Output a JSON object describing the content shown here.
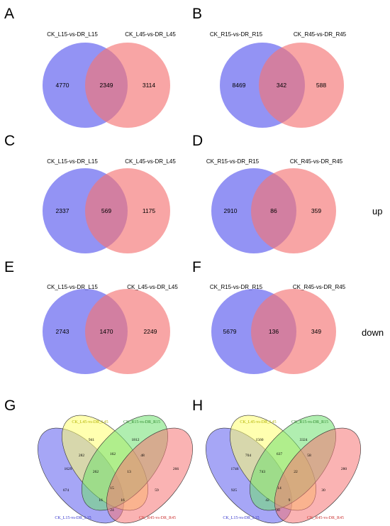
{
  "colors": {
    "set_a": "#7f7ff0",
    "set_b": "#f58a8a",
    "overlap": "#b0568c",
    "v4_blue": "#6a6af0",
    "v4_yellow": "#ffff80",
    "v4_green": "#7fe07f",
    "v4_red": "#f58a8a",
    "v4_label_blue": "#3333cc",
    "v4_label_yellow": "#b3b300",
    "v4_label_green": "#2e8b2e",
    "v4_label_red": "#cc3333"
  },
  "side_labels": {
    "up": "up",
    "down": "down"
  },
  "venn2": [
    {
      "letter": "A",
      "left_label": "CK_L15-vs-DR_L15",
      "right_label": "CK_L45-vs-DR_L45",
      "left_only": "4770",
      "both": "2349",
      "right_only": "3114"
    },
    {
      "letter": "B",
      "left_label": "CK_R15-vs-DR_R15",
      "right_label": "CK_R45-vs-DR_R45",
      "left_only": "8469",
      "both": "342",
      "right_only": "588"
    },
    {
      "letter": "C",
      "left_label": "CK_L15-vs-DR_L15",
      "right_label": "CK_L45-vs-DR_L45",
      "left_only": "2337",
      "both": "569",
      "right_only": "1175"
    },
    {
      "letter": "D",
      "left_label": "CK_R15-vs-DR_R15",
      "right_label": "CK_R45-vs-DR_R45",
      "left_only": "2910",
      "both": "86",
      "right_only": "359"
    },
    {
      "letter": "E",
      "left_label": "CK_L15-vs-DR_L15",
      "right_label": "CK_L45-vs-DR_L45",
      "left_only": "2743",
      "both": "1470",
      "right_only": "2249"
    },
    {
      "letter": "F",
      "left_label": "CK_R15-vs-DR_R15",
      "right_label": "CK_R45-vs-DR_R45",
      "left_only": "5679",
      "both": "136",
      "right_only": "349"
    }
  ],
  "venn4": [
    {
      "letter": "G",
      "labels": {
        "yellow": "CK_L45-vs-DR_L45",
        "green": "CK_R15-vs-DR_R15",
        "blue": "CK_L15-vs-DR_L15",
        "red": "CK_R45-vs-DR_R45"
      },
      "counts": {
        "y": "941",
        "g": "1812",
        "b": "1629",
        "r": "266",
        "by": "282",
        "yg": "162",
        "gr": "48",
        "byg": "262",
        "ygr": "13",
        "bg": "674",
        "all": "15",
        "yr": "59",
        "bgr": "16",
        "byr": "16",
        "br": "24"
      }
    },
    {
      "letter": "H",
      "labels": {
        "yellow": "CK_L45-vs-DR_L45",
        "green": "CK_R15-vs-DR_R15",
        "blue": "CK_L15-vs-DR_L15",
        "red": "CK_R45-vs-DR_R45"
      },
      "counts": {
        "y": "1560",
        "g": "3324",
        "b": "1746",
        "r": "280",
        "by": "704",
        "yg": "637",
        "gr": "58",
        "byg": "743",
        "ygr": "22",
        "bg": "925",
        "all": "14",
        "yr": "30",
        "bgr": "42",
        "byr": "9",
        "br": "30"
      }
    }
  ]
}
